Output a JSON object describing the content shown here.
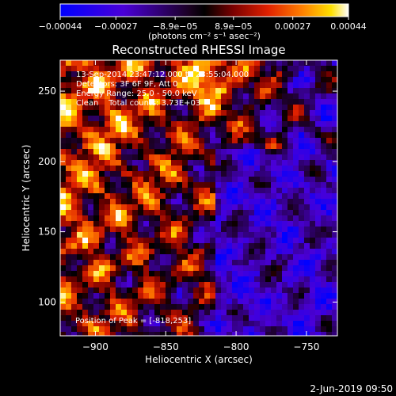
{
  "chart_data": {
    "type": "heatmap",
    "title": "Reconstructed RHESSI Image",
    "xlabel": "Heliocentric X (arcsec)",
    "ylabel": "Heliocentric Y (arcsec)",
    "xlim": [
      -925,
      -728
    ],
    "ylim": [
      76,
      272
    ],
    "x_ticks": [
      -900,
      -850,
      -800,
      -750
    ],
    "x_tick_labels": [
      "−900",
      "−850",
      "−800",
      "−750"
    ],
    "y_ticks": [
      100,
      150,
      200,
      250
    ],
    "y_tick_labels": [
      "100",
      "150",
      "200",
      "250"
    ],
    "colorbar": {
      "colormap": "blue-purple-red-yellow-white",
      "range": [
        -0.00044,
        0.00044
      ],
      "ticks": [
        -0.00044,
        -0.00027,
        -8.9e-05,
        8.9e-05,
        0.00027,
        0.00044
      ],
      "tick_labels": [
        "−0.00044",
        "−0.00027",
        "−8.9e−05",
        "8.9e−05",
        "0.00027",
        "0.00044"
      ],
      "units_label": "(photons cm⁻² s⁻¹ asec⁻²)"
    },
    "annotations": [
      "13-Sep-2014 23:47:12.000 to 23:55:04.000",
      "Detectors: 3F 6F 9F, Att 0",
      "Energy Range: 25.0 - 50.0 keV",
      "Clean    Total counts: 3.73E+03"
    ],
    "peak_label": "Position of Peak = [-818,253]",
    "peak": [
      -818,
      253
    ],
    "footer_date": "2-Jun-2019 09:50"
  }
}
